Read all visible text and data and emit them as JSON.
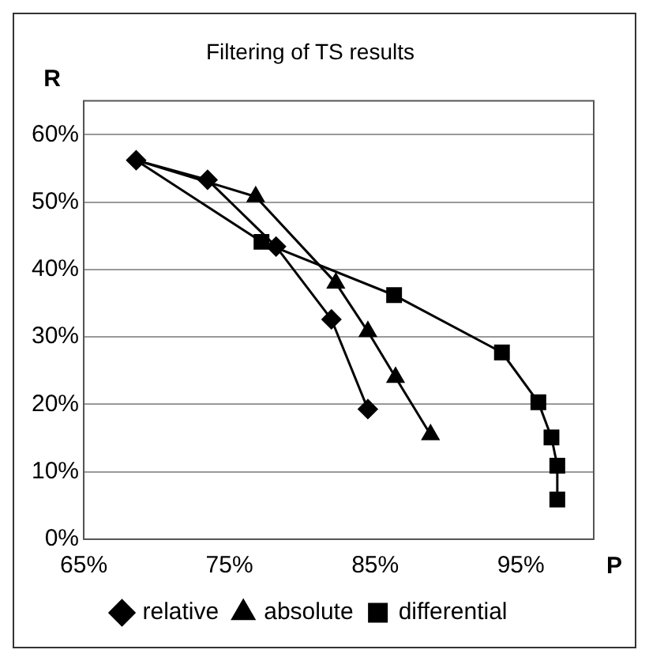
{
  "chart_data": {
    "type": "line",
    "title": "Filtering of TS results",
    "xlabel": "P",
    "ylabel": "R",
    "xlim": [
      65,
      100
    ],
    "xticks": [
      {
        "value": 65,
        "label": "65%"
      },
      {
        "value": 75,
        "label": "75%"
      },
      {
        "value": 85,
        "label": "85%"
      },
      {
        "value": 95,
        "label": "95%"
      }
    ],
    "ylim": [
      0,
      65
    ],
    "yticks": [
      {
        "value": 0,
        "label": "0%"
      },
      {
        "value": 10,
        "label": "10%"
      },
      {
        "value": 20,
        "label": "20%"
      },
      {
        "value": 30,
        "label": "30%"
      },
      {
        "value": 40,
        "label": "40%"
      },
      {
        "value": 50,
        "label": "50%"
      },
      {
        "value": 60,
        "label": "60%"
      }
    ],
    "grid": "y",
    "legend": "bottom",
    "line_style": "solid",
    "series": [
      {
        "name": "relative",
        "color": "#000000",
        "marker": "diamond",
        "x": [
          68.6,
          73.5,
          78.2,
          82.0,
          84.5
        ],
        "values": [
          56.2,
          53.3,
          43.4,
          32.6,
          19.3
        ]
      },
      {
        "name": "absolute",
        "color": "#000000",
        "marker": "triangle",
        "x": [
          68.6,
          76.8,
          82.3,
          84.5,
          86.4,
          88.8
        ],
        "values": [
          56.2,
          50.8,
          38.0,
          30.8,
          24.0,
          15.5
        ]
      },
      {
        "name": "differential",
        "color": "#000000",
        "marker": "square",
        "x": [
          68.6,
          77.2,
          86.3,
          93.7,
          96.2,
          97.1,
          97.5,
          97.5
        ],
        "values": [
          56.2,
          44.1,
          36.2,
          27.7,
          20.3,
          15.1,
          10.9,
          5.9
        ]
      }
    ]
  }
}
